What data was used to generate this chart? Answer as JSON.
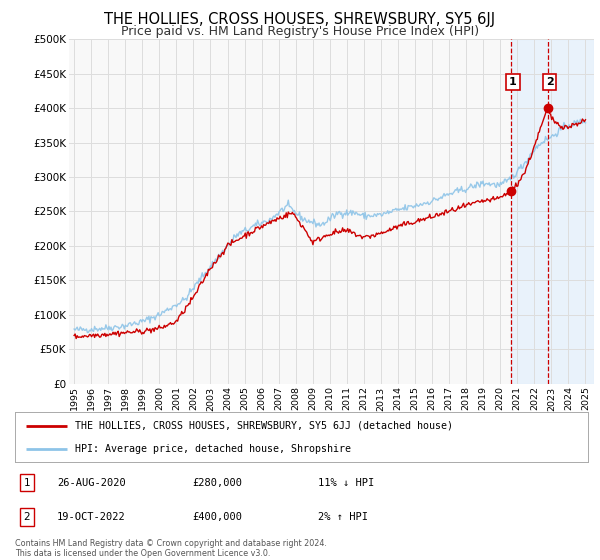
{
  "title": "THE HOLLIES, CROSS HOUSES, SHREWSBURY, SY5 6JJ",
  "subtitle": "Price paid vs. HM Land Registry's House Price Index (HPI)",
  "ylim": [
    0,
    500000
  ],
  "yticks": [
    0,
    50000,
    100000,
    150000,
    200000,
    250000,
    300000,
    350000,
    400000,
    450000,
    500000
  ],
  "ytick_labels": [
    "£0",
    "£50K",
    "£100K",
    "£150K",
    "£200K",
    "£250K",
    "£300K",
    "£350K",
    "£400K",
    "£450K",
    "£500K"
  ],
  "xlim_start": 1994.7,
  "xlim_end": 2025.5,
  "xticks": [
    1995,
    1996,
    1997,
    1998,
    1999,
    2000,
    2001,
    2002,
    2003,
    2004,
    2005,
    2006,
    2007,
    2008,
    2009,
    2010,
    2011,
    2012,
    2013,
    2014,
    2015,
    2016,
    2017,
    2018,
    2019,
    2020,
    2021,
    2022,
    2023,
    2024,
    2025
  ],
  "hpi_color": "#8ec4e8",
  "price_color": "#cc0000",
  "marker_color": "#cc0000",
  "vline1_x": 2020.65,
  "vline2_x": 2022.8,
  "vline_color": "#cc0000",
  "shade_color": "#ddeeff",
  "shade_alpha": 0.55,
  "point1_x": 2020.65,
  "point1_y": 280000,
  "point2_x": 2022.8,
  "point2_y": 400000,
  "annotation1_label": "1",
  "annotation1_date": "26-AUG-2020",
  "annotation1_price": "£280,000",
  "annotation1_hpi": "11% ↓ HPI",
  "annotation2_label": "2",
  "annotation2_date": "19-OCT-2022",
  "annotation2_price": "£400,000",
  "annotation2_hpi": "2% ↑ HPI",
  "legend_line1": "THE HOLLIES, CROSS HOUSES, SHREWSBURY, SY5 6JJ (detached house)",
  "legend_line2": "HPI: Average price, detached house, Shropshire",
  "footnote1": "Contains HM Land Registry data © Crown copyright and database right 2024.",
  "footnote2": "This data is licensed under the Open Government Licence v3.0.",
  "bg_color": "#ffffff",
  "plot_bg_color": "#f8f8f8",
  "grid_color": "#dddddd",
  "title_fontsize": 10.5,
  "subtitle_fontsize": 9
}
